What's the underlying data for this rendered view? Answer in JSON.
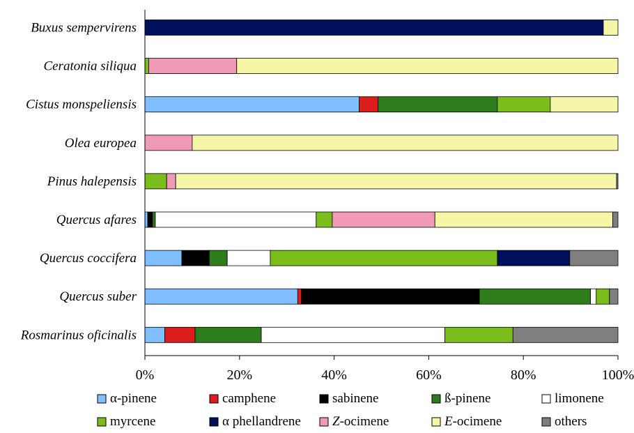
{
  "chart_data": {
    "type": "bar",
    "orientation": "horizontal",
    "stacked": true,
    "normalized_percent": true,
    "categories": [
      "Buxus sempervirens",
      "Ceratonia siliqua",
      "Cistus monspeliensis",
      "Olea europea",
      "Pinus halepensis",
      "Quercus afares",
      "Quercus coccifera",
      "Quercus suber",
      "Rosmarinus oficinalis"
    ],
    "series": [
      {
        "name": "α-pinene",
        "prefix": "α-",
        "italic": "",
        "suffix": "pinene",
        "color": "#7fbfff",
        "values": [
          0,
          0,
          45.3,
          0,
          0,
          0.6,
          7.8,
          32.3,
          4.2
        ]
      },
      {
        "name": "camphene",
        "prefix": "",
        "italic": "",
        "suffix": "camphene",
        "color": "#dd1c1c",
        "values": [
          0,
          0,
          4.0,
          0,
          0,
          0,
          0,
          0.8,
          6.4
        ]
      },
      {
        "name": "sabinene",
        "prefix": "",
        "italic": "",
        "suffix": "sabinene",
        "color": "#000000",
        "values": [
          0,
          0,
          0,
          0,
          0,
          1.0,
          5.8,
          37.6,
          0
        ]
      },
      {
        "name": "ß-pinene",
        "prefix": "ß-",
        "italic": "",
        "suffix": "pinene",
        "color": "#2e7d1c",
        "values": [
          0,
          0,
          25.2,
          0,
          0,
          0.6,
          3.8,
          23.5,
          14.0
        ]
      },
      {
        "name": "limonene",
        "prefix": "",
        "italic": "",
        "suffix": "limonene",
        "color": "#ffffff",
        "values": [
          0,
          0,
          0,
          0,
          0,
          34.0,
          9.1,
          1.2,
          38.8
        ]
      },
      {
        "name": "myrcene",
        "prefix": "",
        "italic": "",
        "suffix": "myrcene",
        "color": "#7cbd1e",
        "values": [
          0,
          0.8,
          11.2,
          0,
          4.6,
          3.4,
          48.0,
          2.8,
          14.4
        ]
      },
      {
        "name": "α phellandrene",
        "prefix": "α ",
        "italic": "",
        "suffix": "phellandrene",
        "color": "#00105a",
        "values": [
          96.9,
          0,
          0,
          0,
          0,
          0,
          15.3,
          0,
          0
        ]
      },
      {
        "name": "Z-ocimene",
        "prefix": "",
        "italic": "Z",
        "suffix": "-ocimene",
        "color": "#f09ab8",
        "values": [
          0,
          18.6,
          0,
          10.0,
          1.9,
          21.7,
          0,
          0,
          0
        ]
      },
      {
        "name": "E-ocimene",
        "prefix": "",
        "italic": "E",
        "suffix": "-ocimene",
        "color": "#f6f6a8",
        "values": [
          3.1,
          80.6,
          14.3,
          90.0,
          93.2,
          37.6,
          0,
          0,
          0
        ]
      },
      {
        "name": "others",
        "prefix": "",
        "italic": "",
        "suffix": "others",
        "color": "#7f7f7f",
        "values": [
          0,
          0,
          0,
          0,
          0.3,
          1.1,
          10.2,
          1.8,
          22.2
        ]
      }
    ],
    "xlim": [
      0,
      100
    ],
    "x_ticks": [
      "0%",
      "20%",
      "40%",
      "60%",
      "80%",
      "100%"
    ],
    "title": "",
    "xlabel": "",
    "ylabel": "",
    "grid": false,
    "legend_position": "bottom"
  }
}
